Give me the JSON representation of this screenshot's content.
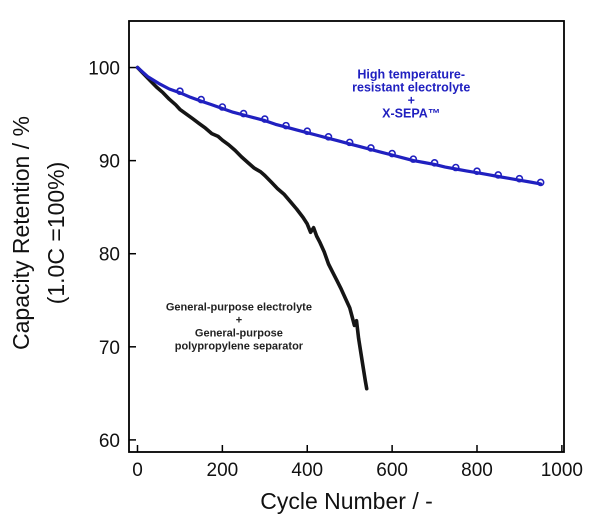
{
  "chart_data": {
    "type": "line",
    "title": "",
    "xlabel": "Cycle Number / -",
    "ylabel_line1": "Capacity Retention / %",
    "ylabel_line2": "(1.0C =100%)",
    "xlim": [
      0,
      1000
    ],
    "ylim": [
      60,
      100
    ],
    "xticks": [
      0,
      200,
      400,
      600,
      800,
      1000
    ],
    "yticks": [
      60,
      70,
      80,
      90,
      100
    ],
    "grid": false,
    "legend_position": "annotations-inside-plot",
    "series": [
      {
        "id": "general-purpose",
        "name": "General-purpose electrolyte + General-purpose polypropylene separator",
        "color": "#151515",
        "line_width": 3.6,
        "marker": "none",
        "points": [
          [
            0,
            100
          ],
          [
            15,
            99.3
          ],
          [
            30,
            98.6
          ],
          [
            45,
            97.9
          ],
          [
            60,
            97.3
          ],
          [
            75,
            96.6
          ],
          [
            90,
            96.0
          ],
          [
            100,
            95.5
          ],
          [
            115,
            95.0
          ],
          [
            130,
            94.5
          ],
          [
            145,
            94.0
          ],
          [
            160,
            93.5
          ],
          [
            175,
            92.9
          ],
          [
            190,
            92.6
          ],
          [
            200,
            92.2
          ],
          [
            215,
            91.7
          ],
          [
            230,
            91.1
          ],
          [
            245,
            90.4
          ],
          [
            260,
            89.8
          ],
          [
            275,
            89.2
          ],
          [
            290,
            88.8
          ],
          [
            300,
            88.4
          ],
          [
            315,
            87.7
          ],
          [
            330,
            87.0
          ],
          [
            345,
            86.4
          ],
          [
            360,
            85.6
          ],
          [
            375,
            84.8
          ],
          [
            390,
            83.9
          ],
          [
            400,
            83.2
          ],
          [
            408,
            82.3
          ],
          [
            415,
            82.8
          ],
          [
            422,
            81.9
          ],
          [
            430,
            81.2
          ],
          [
            440,
            80.2
          ],
          [
            450,
            78.9
          ],
          [
            460,
            78.0
          ],
          [
            470,
            77.1
          ],
          [
            480,
            76.2
          ],
          [
            490,
            75.2
          ],
          [
            500,
            74.2
          ],
          [
            506,
            73.2
          ],
          [
            511,
            72.3
          ],
          [
            516,
            72.8
          ],
          [
            521,
            70.9
          ],
          [
            527,
            69.2
          ],
          [
            532,
            67.7
          ],
          [
            537,
            66.3
          ],
          [
            540,
            65.5
          ]
        ]
      },
      {
        "id": "x-sepa",
        "name": "High temperature-resistant electrolyte + X-SEPA™",
        "color": "#2020c0",
        "line_width": 3.2,
        "marker": "circle",
        "points": [
          [
            0,
            100
          ],
          [
            25,
            99.0
          ],
          [
            50,
            98.3
          ],
          [
            75,
            97.7
          ],
          [
            100,
            97.3
          ],
          [
            125,
            96.8
          ],
          [
            150,
            96.4
          ],
          [
            175,
            96.0
          ],
          [
            200,
            95.6
          ],
          [
            225,
            95.2
          ],
          [
            250,
            94.9
          ],
          [
            275,
            94.6
          ],
          [
            300,
            94.3
          ],
          [
            325,
            93.9
          ],
          [
            350,
            93.6
          ],
          [
            375,
            93.3
          ],
          [
            400,
            93.0
          ],
          [
            425,
            92.7
          ],
          [
            450,
            92.4
          ],
          [
            475,
            92.1
          ],
          [
            500,
            91.8
          ],
          [
            525,
            91.5
          ],
          [
            550,
            91.2
          ],
          [
            575,
            90.9
          ],
          [
            600,
            90.6
          ],
          [
            625,
            90.3
          ],
          [
            650,
            90.0
          ],
          [
            675,
            89.8
          ],
          [
            700,
            89.6
          ],
          [
            725,
            89.3
          ],
          [
            750,
            89.1
          ],
          [
            775,
            88.9
          ],
          [
            800,
            88.7
          ],
          [
            825,
            88.5
          ],
          [
            850,
            88.3
          ],
          [
            875,
            88.1
          ],
          [
            900,
            87.9
          ],
          [
            925,
            87.7
          ],
          [
            950,
            87.5
          ]
        ]
      }
    ],
    "annotations": [
      {
        "name": "blue-series-label",
        "lines": [
          "High temperature-",
          "resistant electrolyte",
          "+",
          "X-SEPA™"
        ],
        "x": 645,
        "y": 98.8,
        "line_height": 13,
        "font_size": 12.5,
        "color": "#2020c0"
      },
      {
        "name": "black-series-label",
        "lines": [
          "General-purpose electrolyte",
          "+",
          "General-purpose",
          "polypropylene separator"
        ],
        "x": 239,
        "y": 73.9,
        "line_height": 13,
        "font_size": 11,
        "color": "#222222"
      }
    ]
  }
}
